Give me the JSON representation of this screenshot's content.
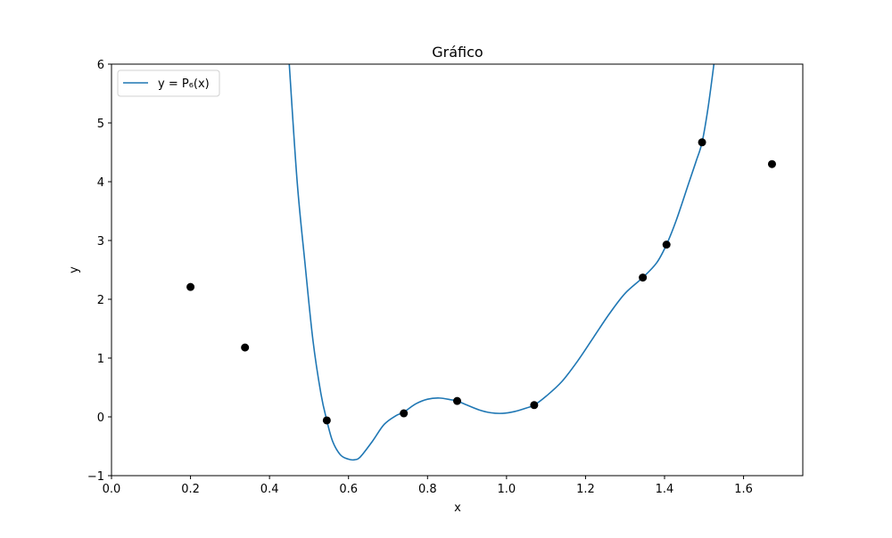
{
  "chart_data": {
    "type": "line",
    "title": "Gráfico",
    "xlabel": "x",
    "ylabel": "y",
    "xlim": [
      0.0,
      1.75
    ],
    "ylim": [
      -1,
      6
    ],
    "xticks": [
      0.0,
      0.2,
      0.4,
      0.6,
      0.8,
      1.0,
      1.2,
      1.4,
      1.6
    ],
    "xtick_labels": [
      "0.0",
      "0.2",
      "0.4",
      "0.6",
      "0.8",
      "1.0",
      "1.2",
      "1.4",
      "1.6"
    ],
    "yticks": [
      -1,
      0,
      1,
      2,
      3,
      4,
      5,
      6
    ],
    "ytick_labels": [
      "−1",
      "0",
      "1",
      "2",
      "3",
      "4",
      "5",
      "6"
    ],
    "grid": false,
    "legend": {
      "placement": "top-left",
      "entries": [
        "y = P₆(x)"
      ]
    },
    "series": [
      {
        "name": "y = P₆(x)",
        "kind": "line",
        "color": "#1f77b4",
        "x": [
          0.45,
          0.47,
          0.49,
          0.51,
          0.53,
          0.545,
          0.56,
          0.58,
          0.6,
          0.615,
          0.63,
          0.66,
          0.69,
          0.72,
          0.74,
          0.77,
          0.8,
          0.83,
          0.86,
          0.875,
          0.9,
          0.93,
          0.96,
          0.99,
          1.02,
          1.05,
          1.07,
          1.1,
          1.14,
          1.18,
          1.22,
          1.26,
          1.3,
          1.345,
          1.38,
          1.405,
          1.43,
          1.46,
          1.48,
          1.495,
          1.51,
          1.525
        ],
        "y": [
          6.0,
          4.0,
          2.6,
          1.3,
          0.4,
          -0.06,
          -0.42,
          -0.65,
          -0.72,
          -0.73,
          -0.68,
          -0.42,
          -0.13,
          0.02,
          0.08,
          0.22,
          0.3,
          0.32,
          0.29,
          0.27,
          0.2,
          0.12,
          0.07,
          0.06,
          0.09,
          0.15,
          0.2,
          0.35,
          0.6,
          0.95,
          1.35,
          1.75,
          2.1,
          2.37,
          2.62,
          2.93,
          3.35,
          3.95,
          4.35,
          4.67,
          5.25,
          6.0
        ]
      },
      {
        "name": "",
        "kind": "scatter",
        "color": "#000000",
        "x": [
          0.2,
          0.338,
          0.545,
          0.74,
          0.875,
          1.07,
          1.345,
          1.405,
          1.495,
          1.672
        ],
        "y": [
          2.21,
          1.18,
          -0.06,
          0.06,
          0.27,
          0.2,
          2.37,
          2.93,
          4.67,
          4.3
        ]
      }
    ]
  }
}
